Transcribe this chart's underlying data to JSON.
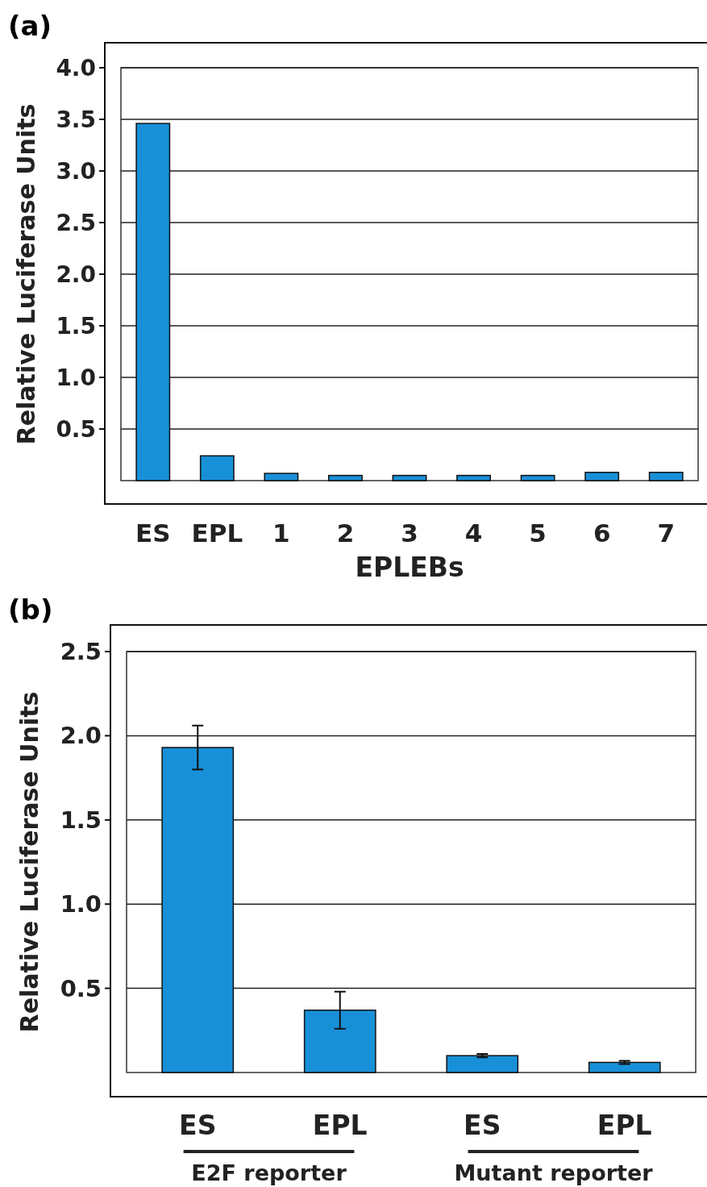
{
  "chart_data": [
    {
      "type": "bar",
      "title": "(a)",
      "xlabel": "EPLEBs",
      "ylabel": "Relative Luciferase Units",
      "categories": [
        "ES",
        "EPL",
        "1",
        "2",
        "3",
        "4",
        "5",
        "6",
        "7"
      ],
      "values": [
        3.46,
        0.24,
        0.07,
        0.05,
        0.05,
        0.05,
        0.05,
        0.08,
        0.08
      ],
      "color": "#1890d8",
      "ylim": [
        0,
        4
      ],
      "yticks": [
        0.5,
        {
          "value": 1,
          "label": "1.0"
        },
        1.5,
        {
          "value": 2,
          "label": "2.0"
        },
        2.5,
        {
          "value": 3,
          "label": "3.0"
        },
        3.5,
        {
          "value": 4,
          "label": "4.0"
        }
      ],
      "grid": "y"
    },
    {
      "type": "bar",
      "title": "(b)",
      "ylabel": "Relative Luciferase Units",
      "categories": [
        "ES",
        "EPL",
        "ES",
        "EPL"
      ],
      "values": [
        1.93,
        0.37,
        0.1,
        0.06
      ],
      "errors": [
        0.13,
        0.11,
        0.01,
        0.01
      ],
      "color": "#1890d8",
      "ylim": [
        0,
        2.5
      ],
      "yticks": [
        0.5,
        {
          "value": 1,
          "label": "1.0"
        },
        1.5,
        {
          "value": 2,
          "label": "2.0"
        },
        2.5
      ],
      "grid": "y",
      "annotations": [
        "E2F reporter",
        "Mutant reporter"
      ]
    }
  ]
}
